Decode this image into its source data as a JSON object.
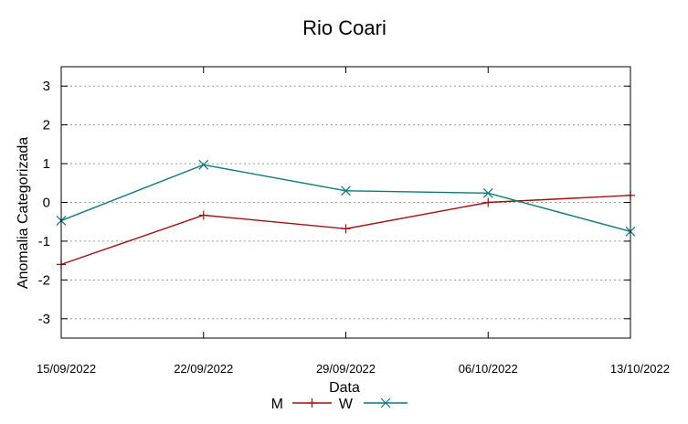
{
  "chart_data": {
    "type": "line",
    "title": "Rio Coari",
    "xlabel": "Data",
    "ylabel": "Anomalia Categorizada",
    "categories": [
      "15/09/2022",
      "22/09/2022",
      "29/09/2022",
      "06/10/2022",
      "13/10/2022"
    ],
    "yticks": [
      "3",
      "2",
      "1",
      "0",
      "-1",
      "-2",
      "-3"
    ],
    "ylim": [
      -3.5,
      3.5
    ],
    "grid": "horizontal dotted",
    "legend_position": "bottom",
    "series": [
      {
        "name": "M",
        "marker": "plus",
        "color": "#a01010",
        "values": [
          -1.6,
          -0.33,
          -0.68,
          0.0,
          0.18
        ]
      },
      {
        "name": "W",
        "marker": "cross",
        "color": "#0a7a7a",
        "values": [
          -0.47,
          0.97,
          0.3,
          0.24,
          -0.75
        ]
      }
    ]
  }
}
